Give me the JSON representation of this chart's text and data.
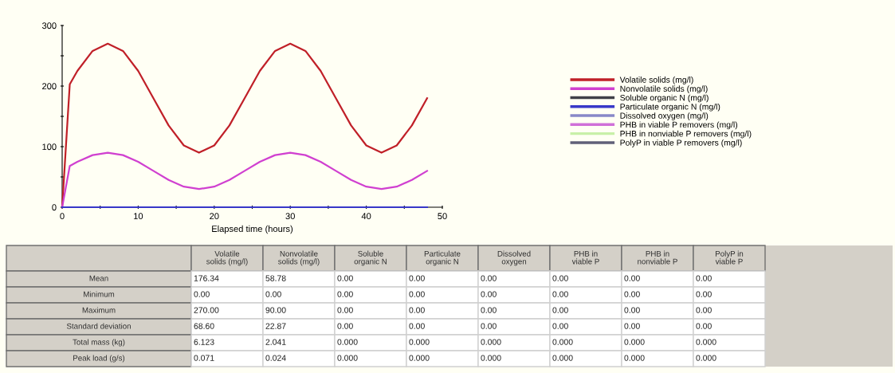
{
  "chart_data": {
    "type": "line",
    "x": [
      0,
      1,
      2,
      4,
      6,
      8,
      10,
      12,
      14,
      16,
      18,
      20,
      22,
      24,
      26,
      28,
      30,
      32,
      34,
      36,
      38,
      40,
      42,
      44,
      46,
      48
    ],
    "series": [
      {
        "name": "Volatile solids (mg/l)",
        "color": "#c02028",
        "values": [
          0,
          203,
          225,
          258,
          270,
          258,
          225,
          180,
          135,
          102,
          90,
          102,
          135,
          180,
          225,
          258,
          270,
          258,
          225,
          180,
          135,
          102,
          90,
          102,
          135,
          180
        ]
      },
      {
        "name": "Nonvolatile solids (mg/l)",
        "color": "#d040d0",
        "values": [
          0,
          68,
          75,
          86,
          90,
          86,
          75,
          60,
          45,
          34,
          30,
          34,
          45,
          60,
          75,
          86,
          90,
          86,
          75,
          60,
          45,
          34,
          30,
          34,
          45,
          60
        ]
      },
      {
        "name": "Soluble organic N (mg/l)",
        "color": "#404048",
        "values": [
          null,
          null,
          null,
          null,
          null,
          null,
          null,
          null,
          null,
          null,
          null,
          null,
          null,
          null,
          null,
          null,
          null,
          null,
          null,
          null,
          null,
          null,
          null,
          null,
          null,
          null
        ]
      },
      {
        "name": "Particulate organic N (mg/l)",
        "color": "#3838c8",
        "x": [
          0,
          48
        ],
        "values": [
          0,
          0
        ]
      },
      {
        "name": "Dissolved oxygen (mg/l)",
        "color": "#8888c8",
        "values": [
          null,
          null,
          null,
          null,
          null,
          null,
          null,
          null,
          null,
          null,
          null,
          null,
          null,
          null,
          null,
          null,
          null,
          null,
          null,
          null,
          null,
          null,
          null,
          null,
          null,
          null
        ]
      },
      {
        "name": "PHB in viable P removers (mg/l)",
        "color": "#d070d8",
        "values": [
          null,
          null,
          null,
          null,
          null,
          null,
          null,
          null,
          null,
          null,
          null,
          null,
          null,
          null,
          null,
          null,
          null,
          null,
          null,
          null,
          null,
          null,
          null,
          null,
          null,
          null
        ]
      },
      {
        "name": "PHB in nonviable P removers (mg/l)",
        "color": "#c8f0a8",
        "values": [
          null,
          null,
          null,
          null,
          null,
          null,
          null,
          null,
          null,
          null,
          null,
          null,
          null,
          null,
          null,
          null,
          null,
          null,
          null,
          null,
          null,
          null,
          null,
          null,
          null,
          null
        ]
      },
      {
        "name": "PolyP in viable P removers (mg/l)",
        "color": "#606078",
        "values": [
          null,
          null,
          null,
          null,
          null,
          null,
          null,
          null,
          null,
          null,
          null,
          null,
          null,
          null,
          null,
          null,
          null,
          null,
          null,
          null,
          null,
          null,
          null,
          null,
          null,
          null
        ]
      }
    ],
    "xlabel": "Elapsed time (hours)",
    "xlim": [
      0,
      50
    ],
    "xticks": [
      0,
      {
        "value": 5,
        "label": null
      },
      10,
      {
        "value": 15,
        "label": null
      },
      20,
      {
        "value": 25,
        "label": null
      },
      30,
      {
        "value": 35,
        "label": null
      },
      40,
      {
        "value": 45,
        "label": null
      },
      50
    ],
    "ylim": [
      0,
      300
    ],
    "yticks": [
      0,
      {
        "value": 50,
        "label": null
      },
      100,
      {
        "value": 150,
        "label": null
      },
      200,
      {
        "value": 250,
        "label": null
      },
      300
    ],
    "legend": "right",
    "marker": "none",
    "line_style": "solid",
    "grid": false,
    "annotations": [
      "Volatile\nsolids (mg/l)",
      "Nonvolatile\nsolids (mg/l)",
      "Soluble\norganic N",
      "Particulate\norganic N",
      "Dissolved\noxygen",
      "PHB in\nviable P",
      "PHB in\nnonviable P",
      "PolyP in\nviable P",
      "Mean",
      "176.34",
      "58.78",
      "0.00",
      "0.00",
      "0.00",
      "0.00",
      "0.00",
      "0.00",
      "Minimum",
      "0.00",
      "0.00",
      "0.00",
      "0.00",
      "0.00",
      "0.00",
      "0.00",
      "0.00",
      "Maximum",
      "270.00",
      "90.00",
      "0.00",
      "0.00",
      "0.00",
      "0.00",
      "0.00",
      "0.00",
      "Standard deviation",
      "68.60",
      "22.87",
      "0.00",
      "0.00",
      "0.00",
      "0.00",
      "0.00",
      "0.00",
      "Total mass (kg)",
      "6.123",
      "2.041",
      "0.000",
      "0.000",
      "0.000",
      "0.000",
      "0.000",
      "0.000",
      "Peak load (g/s)",
      "0.071",
      "0.024",
      "0.000",
      "0.000",
      "0.000",
      "0.000",
      "0.000",
      "0.000"
    ]
  }
}
